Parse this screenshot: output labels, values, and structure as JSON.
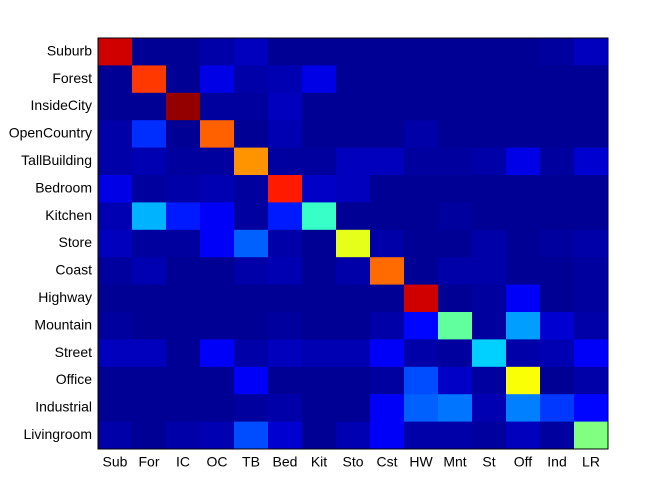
{
  "chart_data": {
    "type": "heatmap",
    "colormap": "jet",
    "zlim": [
      0,
      1
    ],
    "x_labels": [
      "Sub",
      "For",
      "IC",
      "OC",
      "TB",
      "Bed",
      "Kit",
      "Sto",
      "Cst",
      "HW",
      "Mnt",
      "St",
      "Off",
      "Ind",
      "LR"
    ],
    "y_labels": [
      "Suburb",
      "Forest",
      "InsideCity",
      "OpenCountry",
      "TallBuilding",
      "Bedroom",
      "Kitchen",
      "Store",
      "Coast",
      "Highway",
      "Mountain",
      "Street",
      "Office",
      "Industrial",
      "Livingroom"
    ],
    "z": [
      [
        0.92,
        0.02,
        0.02,
        0.04,
        0.06,
        0.02,
        0.02,
        0.02,
        0.02,
        0.02,
        0.02,
        0.02,
        0.02,
        0.03,
        0.06
      ],
      [
        0.02,
        0.82,
        0.02,
        0.1,
        0.04,
        0.05,
        0.1,
        0.02,
        0.02,
        0.02,
        0.02,
        0.02,
        0.02,
        0.02,
        0.02
      ],
      [
        0.02,
        0.02,
        0.98,
        0.03,
        0.03,
        0.06,
        0.02,
        0.02,
        0.02,
        0.02,
        0.02,
        0.02,
        0.02,
        0.02,
        0.02
      ],
      [
        0.04,
        0.17,
        0.02,
        0.78,
        0.02,
        0.05,
        0.02,
        0.02,
        0.02,
        0.04,
        0.02,
        0.02,
        0.02,
        0.02,
        0.02
      ],
      [
        0.04,
        0.05,
        0.03,
        0.03,
        0.73,
        0.03,
        0.03,
        0.06,
        0.06,
        0.03,
        0.03,
        0.04,
        0.1,
        0.03,
        0.08
      ],
      [
        0.1,
        0.03,
        0.04,
        0.05,
        0.03,
        0.85,
        0.07,
        0.06,
        0.02,
        0.02,
        0.02,
        0.02,
        0.02,
        0.02,
        0.02
      ],
      [
        0.05,
        0.3,
        0.15,
        0.12,
        0.03,
        0.15,
        0.43,
        0.02,
        0.02,
        0.02,
        0.03,
        0.02,
        0.02,
        0.02,
        0.02
      ],
      [
        0.06,
        0.03,
        0.03,
        0.12,
        0.22,
        0.04,
        0.02,
        0.6,
        0.04,
        0.02,
        0.02,
        0.04,
        0.02,
        0.03,
        0.04
      ],
      [
        0.03,
        0.05,
        0.02,
        0.02,
        0.04,
        0.05,
        0.02,
        0.04,
        0.77,
        0.02,
        0.04,
        0.04,
        0.02,
        0.02,
        0.03
      ],
      [
        0.02,
        0.02,
        0.02,
        0.02,
        0.02,
        0.02,
        0.02,
        0.02,
        0.02,
        0.92,
        0.02,
        0.03,
        0.12,
        0.02,
        0.03
      ],
      [
        0.03,
        0.02,
        0.02,
        0.02,
        0.02,
        0.03,
        0.02,
        0.02,
        0.04,
        0.13,
        0.47,
        0.03,
        0.28,
        0.08,
        0.04
      ],
      [
        0.06,
        0.06,
        0.02,
        0.12,
        0.04,
        0.06,
        0.05,
        0.05,
        0.12,
        0.04,
        0.03,
        0.33,
        0.04,
        0.05,
        0.12
      ],
      [
        0.02,
        0.02,
        0.02,
        0.02,
        0.12,
        0.02,
        0.02,
        0.02,
        0.03,
        0.2,
        0.07,
        0.03,
        0.62,
        0.02,
        0.04
      ],
      [
        0.02,
        0.02,
        0.02,
        0.02,
        0.03,
        0.04,
        0.02,
        0.02,
        0.12,
        0.22,
        0.24,
        0.05,
        0.25,
        0.18,
        0.13
      ],
      [
        0.04,
        0.02,
        0.04,
        0.05,
        0.2,
        0.08,
        0.02,
        0.05,
        0.12,
        0.04,
        0.04,
        0.03,
        0.06,
        0.03,
        0.5
      ]
    ]
  }
}
